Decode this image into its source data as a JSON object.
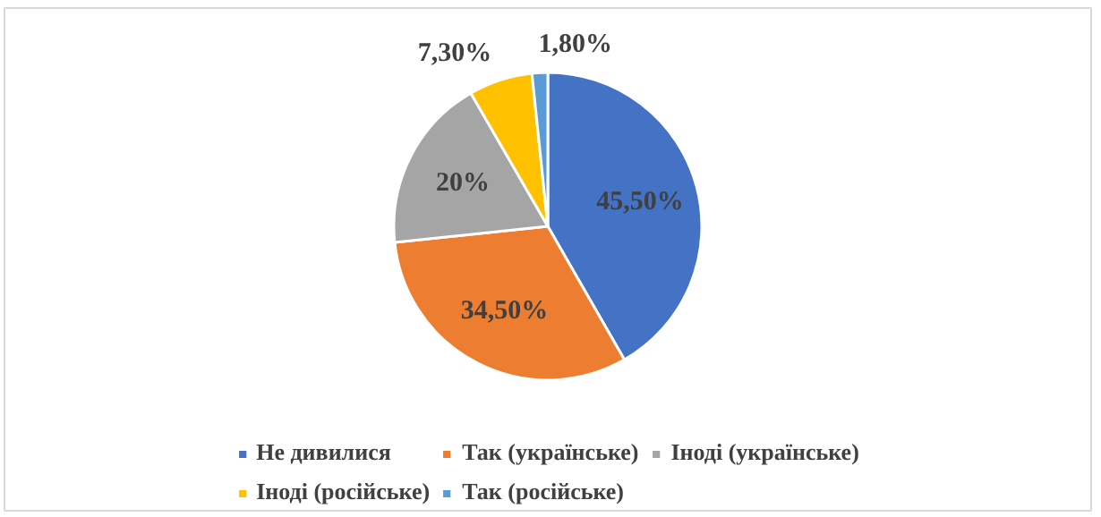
{
  "chart_data": {
    "type": "pie",
    "categories": [
      "Не дивилися",
      "Так (українське)",
      "Іноді (українське)",
      "Іноді (російське)",
      "Так (російське)"
    ],
    "values": [
      45.5,
      34.5,
      20,
      7.3,
      1.8
    ],
    "colors": [
      "#4472c4",
      "#ed7d31",
      "#a5a5a5",
      "#ffc000",
      "#5b9bd5"
    ],
    "value_labels": [
      "45,50%",
      "34,50%",
      "20%",
      "7,30%",
      "1,80%"
    ],
    "legend": "bottom"
  }
}
